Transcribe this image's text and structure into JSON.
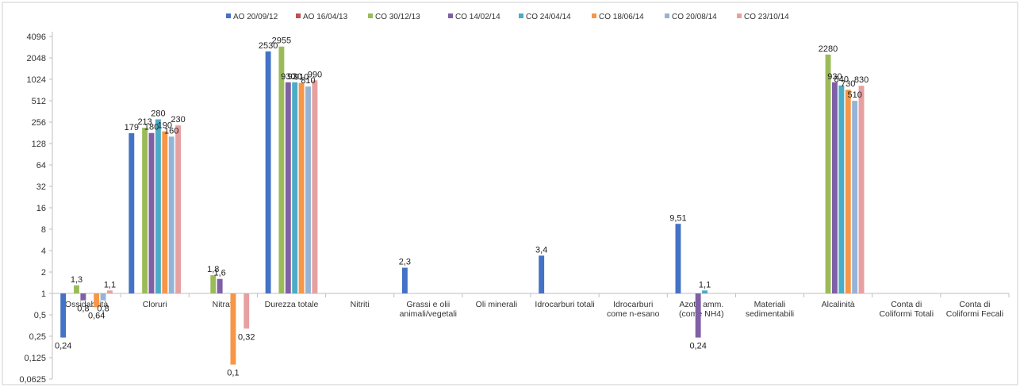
{
  "chart_data": {
    "type": "bar",
    "y_scale": "log2",
    "ylim": [
      0.0625,
      4096
    ],
    "y_ticks": [
      "4096",
      "2048",
      "1024",
      "512",
      "256",
      "128",
      "64",
      "32",
      "16",
      "8",
      "4",
      "2",
      "1",
      "0,5",
      "0,25",
      "0,125",
      "0,0625"
    ],
    "grid": false,
    "legend_position": "top",
    "categories": [
      [
        "Ossidabilità"
      ],
      [
        "Cloruri"
      ],
      [
        "Nitrati"
      ],
      [
        "Durezza totale"
      ],
      [
        "Nitriti"
      ],
      [
        "Grassi e olii",
        "animali/vegetali"
      ],
      [
        "Oli minerali"
      ],
      [
        "Idrocarburi totali"
      ],
      [
        "Idrocarburi",
        "come n-esano"
      ],
      [
        "Azoto amm.",
        "(come NH4)"
      ],
      [
        "Materiali",
        "sedimentabili"
      ],
      [
        "Alcalinità"
      ],
      [
        "Conta di",
        "Coliformi Totali"
      ],
      [
        "Conta di",
        "Coliformi Fecali"
      ]
    ],
    "series": [
      {
        "name": "AO 20/09/12",
        "color": "#4472C4",
        "values": [
          0.24,
          179,
          null,
          2530,
          null,
          2.3,
          null,
          3.4,
          null,
          9.51,
          null,
          null,
          null,
          null
        ],
        "labels": [
          "0,24",
          "179",
          "",
          "2530",
          "",
          "2,3",
          "",
          "3,4",
          "",
          "9,51",
          "",
          "",
          "",
          ""
        ]
      },
      {
        "name": "AO 16/04/13",
        "color": "#C0504D",
        "values": [
          null,
          null,
          null,
          null,
          null,
          null,
          null,
          null,
          null,
          null,
          null,
          null,
          null,
          null
        ],
        "labels": [
          "",
          "",
          "",
          "",
          "",
          "",
          "",
          "",
          "",
          "",
          "",
          "",
          "",
          ""
        ]
      },
      {
        "name": "CO 30/12/13",
        "color": "#9BBB59",
        "values": [
          1.3,
          213,
          1.8,
          2955,
          null,
          null,
          null,
          null,
          null,
          null,
          null,
          2280,
          null,
          null
        ],
        "labels": [
          "1,3",
          "213",
          "1,8",
          "2955",
          "",
          "",
          "",
          "",
          "",
          "",
          "",
          "2280",
          "",
          ""
        ]
      },
      {
        "name": "CO 14/02/14",
        "color": "#7F5FA6",
        "values": [
          0.8,
          180,
          1.6,
          930,
          null,
          null,
          null,
          null,
          null,
          0.24,
          null,
          930,
          null,
          null
        ],
        "labels": [
          "0,8",
          "180",
          "1,6",
          "930",
          "",
          "",
          "",
          "",
          "",
          "0,24",
          "",
          "930",
          "",
          ""
        ]
      },
      {
        "name": "CO 24/04/14",
        "color": "#4BACC6",
        "values": [
          null,
          280,
          null,
          930,
          null,
          null,
          null,
          null,
          null,
          1.1,
          null,
          840,
          null,
          null
        ],
        "labels": [
          "",
          "280",
          "",
          "930",
          "",
          "",
          "",
          "",
          "",
          "1,1",
          "",
          "840",
          "",
          ""
        ]
      },
      {
        "name": "CO 18/06/14",
        "color": "#F79646",
        "values": [
          0.64,
          190,
          0.1,
          910,
          null,
          null,
          null,
          null,
          null,
          null,
          null,
          730,
          null,
          null
        ],
        "labels": [
          "0,64",
          "190",
          "0,1",
          "910",
          "",
          "",
          "",
          "",
          "",
          "",
          "",
          "730",
          "",
          ""
        ]
      },
      {
        "name": "CO 20/08/14",
        "color": "#95B3D7",
        "values": [
          0.8,
          160,
          null,
          810,
          null,
          null,
          null,
          null,
          null,
          null,
          null,
          510,
          null,
          null
        ],
        "labels": [
          "0,8",
          "160",
          "",
          "810",
          "",
          "",
          "",
          "",
          "",
          "",
          "",
          "510",
          "",
          ""
        ]
      },
      {
        "name": "CO 23/10/14",
        "color": "#E6A0A0",
        "values": [
          1.1,
          230,
          0.32,
          990,
          null,
          null,
          null,
          null,
          null,
          null,
          null,
          830,
          null,
          null
        ],
        "labels": [
          "1,1",
          "230",
          "0,32",
          "990",
          "",
          "",
          "",
          "",
          "",
          "",
          "",
          "830",
          "",
          ""
        ]
      }
    ]
  }
}
